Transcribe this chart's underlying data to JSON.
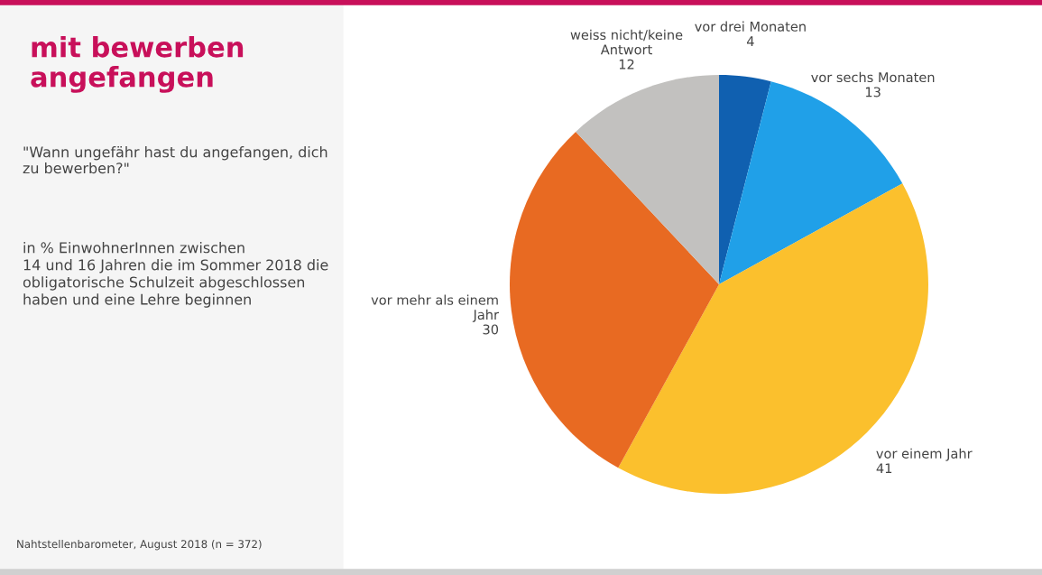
{
  "chart_data": {
    "type": "pie",
    "title": "mit bewerben\nangefangen",
    "subtitle": "\"Wann ungefähr hast du angefangen, dich\nzu bewerben?\"",
    "annotations": [
      "in % EinwohnerInnen zwischen\n14 und 16 Jahren die im Sommer 2018 die\nobligatorische Schulzeit abgeschlossen\nhaben und eine Lehre beginnen",
      "Nahtstellenbarometer, August 2018 (n = 372)"
    ],
    "categories": [
      "vor drei Monaten",
      "vor sechs Monaten",
      "vor einem Jahr",
      "vor mehr als einem\nJahr",
      "weiss nicht/keine\nAntwort"
    ],
    "values": [
      4,
      13,
      41,
      30,
      12
    ],
    "colors": [
      "#1060b0",
      "#20a0e8",
      "#fbc02d",
      "#e86a22",
      "#c2c1bf"
    ],
    "data_labels": true,
    "legend": false
  }
}
